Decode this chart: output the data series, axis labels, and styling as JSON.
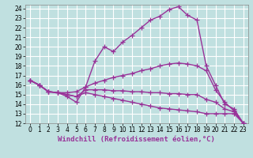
{
  "xlabel": "Windchill (Refroidissement éolien,°C)",
  "bg_color": "#c0e0e0",
  "line_color": "#993399",
  "grid_color": "#ffffff",
  "xlim": [
    -0.5,
    23.5
  ],
  "ylim": [
    12,
    24.4
  ],
  "xticks": [
    0,
    1,
    2,
    3,
    4,
    5,
    6,
    7,
    8,
    9,
    10,
    11,
    12,
    13,
    14,
    15,
    16,
    17,
    18,
    19,
    20,
    21,
    22,
    23
  ],
  "yticks": [
    12,
    13,
    14,
    15,
    16,
    17,
    18,
    19,
    20,
    21,
    22,
    23,
    24
  ],
  "lines": [
    {
      "x": [
        0,
        1,
        2,
        3,
        4,
        5,
        6,
        7,
        8,
        9,
        10,
        11,
        12,
        13,
        14,
        15,
        16,
        17,
        18,
        19,
        20,
        21,
        22,
        23
      ],
      "y": [
        16.5,
        16.0,
        15.3,
        15.2,
        14.8,
        14.2,
        15.8,
        18.5,
        20.0,
        19.5,
        20.5,
        21.2,
        22.0,
        22.8,
        23.2,
        23.9,
        24.2,
        23.3,
        22.8,
        18.0,
        16.0,
        14.0,
        13.5,
        12.0
      ]
    },
    {
      "x": [
        0,
        1,
        2,
        3,
        4,
        5,
        6,
        7,
        8,
        9,
        10,
        11,
        12,
        13,
        14,
        15,
        16,
        17,
        18,
        19,
        20,
        21,
        22,
        23
      ],
      "y": [
        16.5,
        16.0,
        15.3,
        15.2,
        15.2,
        15.3,
        15.8,
        16.2,
        16.5,
        16.8,
        17.0,
        17.2,
        17.5,
        17.7,
        18.0,
        18.2,
        18.3,
        18.2,
        18.0,
        17.5,
        15.5,
        14.2,
        13.3,
        12.0
      ]
    },
    {
      "x": [
        0,
        1,
        2,
        3,
        4,
        5,
        6,
        7,
        8,
        9,
        10,
        11,
        12,
        13,
        14,
        15,
        16,
        17,
        18,
        19,
        20,
        21,
        22,
        23
      ],
      "y": [
        16.5,
        16.0,
        15.3,
        15.2,
        15.0,
        14.8,
        15.5,
        15.5,
        15.5,
        15.4,
        15.4,
        15.3,
        15.3,
        15.2,
        15.2,
        15.1,
        15.1,
        15.0,
        15.0,
        14.5,
        14.2,
        13.5,
        13.2,
        12.0
      ]
    },
    {
      "x": [
        0,
        1,
        2,
        3,
        4,
        5,
        6,
        7,
        8,
        9,
        10,
        11,
        12,
        13,
        14,
        15,
        16,
        17,
        18,
        19,
        20,
        21,
        22,
        23
      ],
      "y": [
        16.5,
        16.0,
        15.3,
        15.2,
        15.0,
        14.8,
        15.2,
        15.0,
        14.8,
        14.6,
        14.4,
        14.2,
        14.0,
        13.8,
        13.6,
        13.5,
        13.4,
        13.3,
        13.2,
        13.0,
        13.0,
        13.0,
        13.0,
        12.0
      ]
    }
  ],
  "marker": "+",
  "markersize": 4,
  "linewidth": 1.0,
  "label_fontsize": 6.5,
  "tick_fontsize": 5.5
}
